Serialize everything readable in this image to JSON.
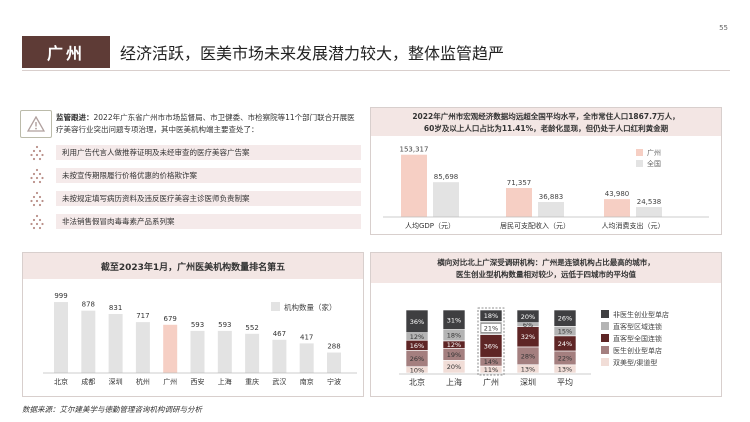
{
  "page": {
    "number": "55",
    "city_tag": "广州",
    "headline": "经济活跃，医美市场未来发展潜力较大，整体监管趋严",
    "footer": "数据来源：艾尔建美学与德勤管理咨询机构调研与分析"
  },
  "supervision": {
    "lead_bold": "监管跟进：",
    "lead_text": "2022年广东省广州市市场监督局、市卫健委、市检察院等11个部门联合开展医疗美容行业突出问题专项治理，其中医美机构端主要查处了：",
    "items": [
      "利用广告代言人做推荐证明及未经审查的医疗美容广告案",
      "未按宣传期限履行价格优惠的价格欺诈案",
      "未按规定填写病历资料及违反医疗美容主诊医师负责制案",
      "非法销售假冒肉毒毒素产品系列案"
    ]
  },
  "colors": {
    "accent_dark": "#5e3b36",
    "gz_pink": "#f6cfc4",
    "gray_bar": "#e3e3e3",
    "stack_dark": "#3f3f41",
    "stack_gray": "#b4b4b4",
    "stack_maroon": "#5e2525",
    "stack_rose": "#a47f7f",
    "stack_pink": "#f1ddd7"
  },
  "chart_data": [
    {
      "type": "bar",
      "title": "2022年广州市宏观经济数据均远超全国平均水平，全市常住人口1867.7万人，60岁及以上人口占比为11.41%，老龄化显现，但仍处于人口红利黄金期",
      "categories": [
        "人均GDP（元）",
        "居民可支配收入（元）",
        "人均消费支出（元）"
      ],
      "series": [
        {
          "name": "广州",
          "values": [
            153317,
            71357,
            43980
          ],
          "labels": [
            "153,317",
            "71,357",
            "43,980"
          ]
        },
        {
          "name": "全国",
          "values": [
            85698,
            36883,
            24538
          ],
          "labels": [
            "85,698",
            "36,883",
            "24,538"
          ]
        }
      ],
      "ylim": [
        0,
        160000
      ],
      "legend": "top-right"
    },
    {
      "type": "bar",
      "title": "截至2023年1月，广州医美机构数量排名第五",
      "categories": [
        "北京",
        "成都",
        "深圳",
        "杭州",
        "广州",
        "西安",
        "上海",
        "重庆",
        "武汉",
        "南京",
        "宁波"
      ],
      "values": [
        999,
        878,
        831,
        717,
        679,
        593,
        593,
        552,
        467,
        417,
        288
      ],
      "series_name": "机构数量（家）",
      "highlight": "广州",
      "ylim": [
        0,
        1000
      ],
      "legend": "top-right"
    },
    {
      "type": "bar",
      "stacked": true,
      "title": "横向对比北上广深受调研机构：广州是连锁机构占比最高的城市，医生创业型机构数量相对较少，远低于四城市的平均值",
      "categories": [
        "北京",
        "上海",
        "广州",
        "深圳",
        "平均"
      ],
      "series": [
        {
          "name": "双美型/渠道型",
          "values": [
            10,
            20,
            11,
            13,
            13
          ]
        },
        {
          "name": "医生创业型单店",
          "values": [
            26,
            19,
            14,
            28,
            22
          ]
        },
        {
          "name": "直客型全国连锁",
          "values": [
            16,
            12,
            36,
            32,
            24
          ]
        },
        {
          "name": "直客型区域连锁",
          "values": [
            12,
            18,
            21,
            6,
            15
          ]
        },
        {
          "name": "非医生创业型单店",
          "values": [
            36,
            31,
            18,
            20,
            26
          ]
        }
      ],
      "labels": [
        [
          "10%",
          "20%",
          "11%",
          "13%",
          "13%"
        ],
        [
          "26%",
          "19%",
          "14%",
          "28%",
          "22%"
        ],
        [
          "16%",
          "12%",
          "36%",
          "32%",
          "24%"
        ],
        [
          "12%",
          "18%",
          "21%",
          "6%",
          "15%"
        ],
        [
          "36%",
          "31%",
          "18%",
          "20%",
          "26%"
        ]
      ],
      "highlight": "广州",
      "legend": "right"
    }
  ]
}
